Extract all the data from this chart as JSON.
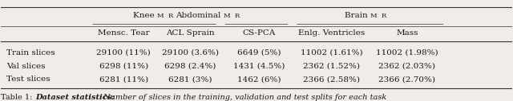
{
  "title_caption": "Table 1: ",
  "caption_bold": "Dataset statistics:",
  "caption_rest": " Number of slices in the training, validation and test splits for each task",
  "top_headers": [
    {
      "label": "Knee ",
      "label_small": "MR",
      "col_span": [
        1,
        2
      ]
    },
    {
      "label": "Abdominal ",
      "label_small": "MR",
      "col_span": [
        3,
        3
      ]
    },
    {
      "label": "Brain ",
      "label_small": "MR",
      "col_span": [
        4,
        5
      ]
    }
  ],
  "sub_headers": [
    "Mensc. Tear",
    "ACL Sprain",
    "CS-PCA",
    "Enlg. Ventricles",
    "Mass"
  ],
  "row_labels": [
    "Train slices",
    "Val slices",
    "Test slices"
  ],
  "data": [
    [
      "29100 (11%)",
      "29100 (3.6%)",
      "6649 (5%)",
      "11002 (1.61%)",
      "11002 (1.98%)"
    ],
    [
      "6298 (11%)",
      "6298 (2.4%)",
      "1431 (4.5%)",
      "2362 (1.52%)",
      "2362 (2.03%)"
    ],
    [
      "6281 (11%)",
      "6281 (3%)",
      "1462 (6%)",
      "2366 (2.58%)",
      "2366 (2.70%)"
    ]
  ],
  "bg_color": "#f0ede8",
  "text_color": "#1a1a1a",
  "line_color": "#333333",
  "font_size": 7.5,
  "caption_font_size": 7.0
}
